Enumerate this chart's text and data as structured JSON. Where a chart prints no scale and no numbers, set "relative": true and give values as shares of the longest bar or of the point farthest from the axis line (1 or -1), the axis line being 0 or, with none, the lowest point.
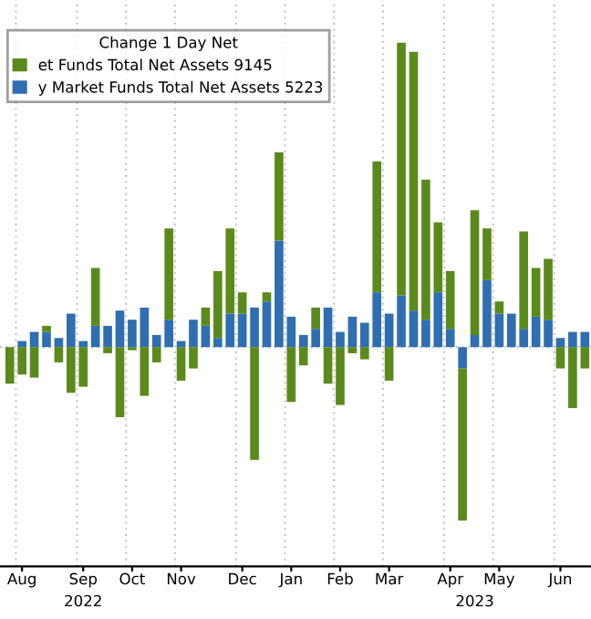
{
  "chart_data": {
    "type": "bar",
    "stacked": true,
    "relative": true,
    "legend_title": "Change 1 Day Net",
    "legend": "top left",
    "grid": "x",
    "categories": [
      null,
      "Aug",
      null,
      null,
      null,
      null,
      "Sep",
      null,
      null,
      null,
      "Oct",
      null,
      null,
      null,
      "Nov",
      null,
      null,
      null,
      null,
      "Dec",
      null,
      null,
      null,
      "Jan",
      null,
      null,
      null,
      "Feb",
      null,
      null,
      null,
      "Mar",
      null,
      null,
      null,
      null,
      "Apr",
      null,
      null,
      null,
      "May",
      null,
      null,
      null,
      null,
      "Jun",
      null,
      null
    ],
    "series": [
      {
        "name": "y Market Funds Total Net Assets 5223",
        "color": "#2f6eb0",
        "values": [
          0,
          0.02,
          0.05,
          0.05,
          0.03,
          0.11,
          0.02,
          0.07,
          0.07,
          0.12,
          0.09,
          0.13,
          0.04,
          0.09,
          0.02,
          0.09,
          0.07,
          0.03,
          0.11,
          0.11,
          0.13,
          0.15,
          0.35,
          0.1,
          0.04,
          0.06,
          0.13,
          0.05,
          0.1,
          0.08,
          0.18,
          0.11,
          0.17,
          0.12,
          0.09,
          0.18,
          0.06,
          -0.07,
          0.04,
          0.22,
          0.11,
          0.11,
          0.06,
          0.1,
          0.09,
          0.03,
          0.05,
          0.05
        ]
      },
      {
        "name": "et Funds Total Net Assets 9145",
        "color": "#5b8a1c",
        "values": [
          -0.12,
          -0.09,
          -0.1,
          0.02,
          -0.05,
          -0.15,
          -0.13,
          0.19,
          -0.02,
          -0.23,
          -0.01,
          -0.16,
          -0.05,
          0.3,
          -0.11,
          -0.07,
          0.06,
          0.22,
          0.28,
          0.07,
          -0.37,
          0.03,
          0.29,
          -0.18,
          -0.06,
          0.07,
          -0.12,
          -0.19,
          -0.02,
          -0.04,
          0.43,
          -0.11,
          0.83,
          0.85,
          0.46,
          0.23,
          0.19,
          -0.5,
          0.41,
          0.17,
          0.04,
          0,
          0.32,
          0.16,
          0.2,
          -0.07,
          -0.2,
          -0.07
        ]
      }
    ],
    "annotations": [
      "2022",
      "2023"
    ]
  }
}
